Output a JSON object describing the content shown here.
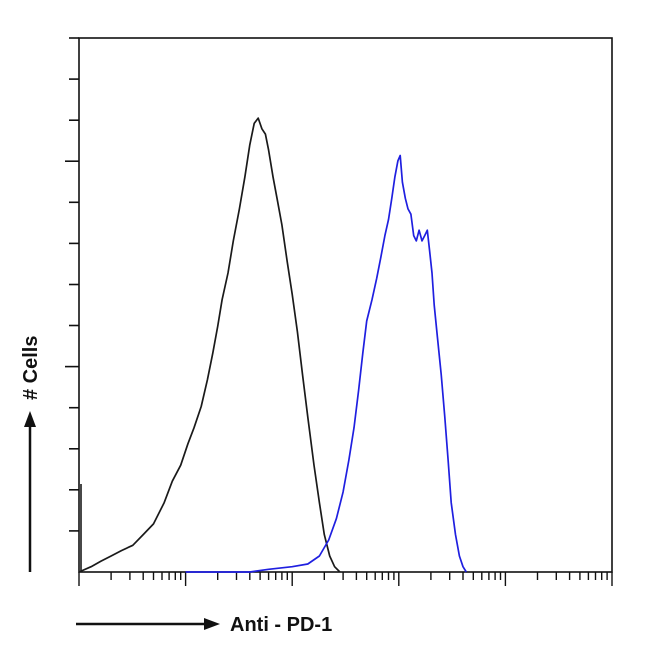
{
  "chart_data": {
    "type": "line",
    "title": "",
    "xlabel": "Anti - PD-1",
    "ylabel": "# Cells",
    "x_scale": "log",
    "xlim": [
      1,
      100000
    ],
    "ylim": [
      0,
      100
    ],
    "grid": false,
    "legend": "none",
    "series": [
      {
        "color": "#1a1a1a",
        "points": [
          [
            1,
            0
          ],
          [
            1.3,
            1
          ],
          [
            1.6,
            2
          ],
          [
            2,
            3
          ],
          [
            2.5,
            4
          ],
          [
            3.2,
            5
          ],
          [
            4,
            7
          ],
          [
            5,
            9
          ],
          [
            6.3,
            13
          ],
          [
            7.5,
            17
          ],
          [
            9,
            20
          ],
          [
            10.5,
            24
          ],
          [
            12,
            27
          ],
          [
            14,
            31
          ],
          [
            16,
            36
          ],
          [
            18,
            41
          ],
          [
            20,
            46
          ],
          [
            22,
            51
          ],
          [
            25,
            56
          ],
          [
            28,
            62
          ],
          [
            32,
            68
          ],
          [
            36,
            74
          ],
          [
            40,
            80
          ],
          [
            44,
            84
          ],
          [
            48,
            85
          ],
          [
            52,
            83
          ],
          [
            56,
            82
          ],
          [
            60,
            79
          ],
          [
            66,
            74
          ],
          [
            72,
            70
          ],
          [
            80,
            65
          ],
          [
            90,
            58
          ],
          [
            100,
            52
          ],
          [
            112,
            45
          ],
          [
            125,
            37
          ],
          [
            140,
            29
          ],
          [
            160,
            20
          ],
          [
            180,
            13
          ],
          [
            200,
            7
          ],
          [
            225,
            3
          ],
          [
            250,
            1
          ],
          [
            280,
            0
          ]
        ]
      },
      {
        "color": "#1f1fe0",
        "points": [
          [
            10,
            0
          ],
          [
            40,
            0
          ],
          [
            60,
            0.5
          ],
          [
            100,
            1
          ],
          [
            140,
            1.5
          ],
          [
            180,
            3
          ],
          [
            220,
            6
          ],
          [
            260,
            10
          ],
          [
            300,
            15
          ],
          [
            340,
            21
          ],
          [
            380,
            27
          ],
          [
            420,
            34
          ],
          [
            460,
            41
          ],
          [
            500,
            47
          ],
          [
            560,
            51
          ],
          [
            620,
            55
          ],
          [
            680,
            59
          ],
          [
            740,
            63
          ],
          [
            800,
            66
          ],
          [
            860,
            70
          ],
          [
            920,
            74
          ],
          [
            980,
            77
          ],
          [
            1030,
            78
          ],
          [
            1080,
            73
          ],
          [
            1150,
            70
          ],
          [
            1220,
            68
          ],
          [
            1300,
            67
          ],
          [
            1380,
            63
          ],
          [
            1460,
            62
          ],
          [
            1550,
            64
          ],
          [
            1650,
            62
          ],
          [
            1750,
            63
          ],
          [
            1850,
            64
          ],
          [
            1950,
            60
          ],
          [
            2050,
            56
          ],
          [
            2150,
            50
          ],
          [
            2300,
            44
          ],
          [
            2500,
            37
          ],
          [
            2700,
            29
          ],
          [
            2900,
            21
          ],
          [
            3100,
            13
          ],
          [
            3400,
            7
          ],
          [
            3700,
            3
          ],
          [
            4000,
            1
          ],
          [
            4300,
            0
          ]
        ]
      }
    ]
  }
}
